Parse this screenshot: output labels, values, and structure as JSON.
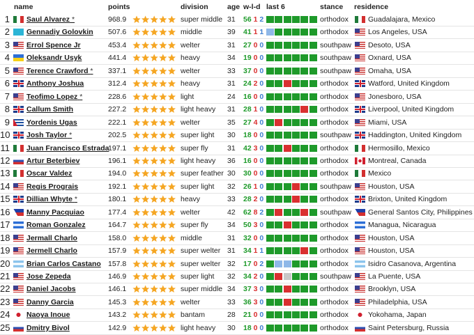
{
  "header": [
    "name",
    "points",
    "division",
    "age",
    "w-l-d",
    "last 6",
    "stance",
    "residence"
  ],
  "rows": [
    {
      "rank": 1,
      "name": "Saul Alvarez",
      "marker": "*",
      "points": "968.9",
      "division": "super middle",
      "age": 31,
      "w": 56,
      "l": 1,
      "d": 2,
      "stance": "orthodox",
      "residence": "Guadalajara, Mexico"
    },
    {
      "rank": 2,
      "name": "Gennadiy Golovkin",
      "points": "507.6",
      "division": "middle",
      "age": 39,
      "w": 41,
      "l": 1,
      "d": 1,
      "stance": "orthodox",
      "residence": "Los Angeles, USA"
    },
    {
      "rank": 3,
      "name": "Errol Spence Jr",
      "points": "453.4",
      "division": "welter",
      "age": 31,
      "w": 27,
      "l": 0,
      "d": 0,
      "stance": "southpaw",
      "residence": "Desoto, USA"
    },
    {
      "rank": 4,
      "name": "Oleksandr Usyk",
      "points": "441.4",
      "division": "heavy",
      "age": 34,
      "w": 19,
      "l": 0,
      "d": 0,
      "stance": "southpaw",
      "residence": "Oxnard, USA"
    },
    {
      "rank": 5,
      "name": "Terence Crawford",
      "marker": "*",
      "points": "337.1",
      "division": "welter",
      "age": 33,
      "w": 37,
      "l": 0,
      "d": 0,
      "stance": "southpaw",
      "residence": "Omaha, USA"
    },
    {
      "rank": 6,
      "name": "Anthony Joshua",
      "points": "312.4",
      "division": "heavy",
      "age": 31,
      "w": 24,
      "l": 2,
      "d": 0,
      "stance": "orthodox",
      "residence": "Watford, United Kingdom"
    },
    {
      "rank": 7,
      "name": "Teofimo Lopez",
      "marker": "*",
      "points": "228.6",
      "division": "light",
      "age": 24,
      "w": 16,
      "l": 0,
      "d": 0,
      "stance": "orthodox",
      "residence": "Jonesboro, USA"
    },
    {
      "rank": 8,
      "name": "Callum Smith",
      "points": "227.2",
      "division": "light heavy",
      "age": 31,
      "w": 28,
      "l": 1,
      "d": 0,
      "stance": "orthodox",
      "residence": "Liverpool, United Kingdom"
    },
    {
      "rank": 9,
      "name": "Yordenis Ugas",
      "points": "222.1",
      "division": "welter",
      "age": 35,
      "w": 27,
      "l": 4,
      "d": 0,
      "stance": "orthodox",
      "residence": "Miami, USA"
    },
    {
      "rank": 10,
      "name": "Josh Taylor",
      "marker": "*",
      "points": "202.5",
      "division": "super light",
      "age": 30,
      "w": 18,
      "l": 0,
      "d": 0,
      "stance": "southpaw",
      "residence": "Haddington, United Kingdom"
    },
    {
      "rank": 11,
      "name": "Juan Francisco Estrada",
      "points": "197.1",
      "division": "super fly",
      "age": 31,
      "w": 42,
      "l": 3,
      "d": 0,
      "stance": "orthodox",
      "residence": "Hermosillo, Mexico"
    },
    {
      "rank": 12,
      "name": "Artur Beterbiev",
      "points": "196.1",
      "division": "light heavy",
      "age": 36,
      "w": 16,
      "l": 0,
      "d": 0,
      "stance": "orthodox",
      "residence": "Montreal, Canada"
    },
    {
      "rank": 13,
      "name": "Oscar Valdez",
      "points": "194.0",
      "division": "super feather",
      "age": 30,
      "w": 30,
      "l": 0,
      "d": 0,
      "stance": "orthodox",
      "residence": "Mexico"
    },
    {
      "rank": 14,
      "name": "Regis Prograis",
      "points": "192.1",
      "division": "super light",
      "age": 32,
      "w": 26,
      "l": 1,
      "d": 0,
      "stance": "southpaw",
      "residence": "Houston, USA"
    },
    {
      "rank": 15,
      "name": "Dillian Whyte",
      "marker": "*",
      "points": "180.1",
      "division": "heavy",
      "age": 33,
      "w": 28,
      "l": 2,
      "d": 0,
      "stance": "orthodox",
      "residence": "Brixton, United Kingdom"
    },
    {
      "rank": 16,
      "name": "Manny Pacquiao",
      "points": "177.4",
      "division": "welter",
      "age": 42,
      "w": 62,
      "l": 8,
      "d": 2,
      "stance": "southpaw",
      "residence": "General Santos City, Philippines"
    },
    {
      "rank": 17,
      "name": "Roman Gonzalez",
      "points": "164.7",
      "division": "super fly",
      "age": 34,
      "w": 50,
      "l": 3,
      "d": 0,
      "stance": "orthodox",
      "residence": "Managua, Nicaragua"
    },
    {
      "rank": 18,
      "name": "Jermall Charlo",
      "points": "158.0",
      "division": "middle",
      "age": 31,
      "w": 32,
      "l": 0,
      "d": 0,
      "stance": "orthodox",
      "residence": "Houston, USA"
    },
    {
      "rank": 19,
      "name": "Jermell Charlo",
      "points": "157.9",
      "division": "super welter",
      "age": 31,
      "w": 34,
      "l": 1,
      "d": 1,
      "stance": "orthodox",
      "residence": "Houston, USA"
    },
    {
      "rank": 20,
      "name": "Brian Carlos Castano",
      "points": "157.8",
      "division": "super welter",
      "age": 32,
      "w": 17,
      "l": 0,
      "d": 2,
      "stance": "orthodox",
      "residence": "Isidro Casanova, Argentina"
    },
    {
      "rank": 21,
      "name": "Jose Zepeda",
      "points": "146.9",
      "division": "super light",
      "age": 32,
      "w": 34,
      "l": 2,
      "d": 0,
      "stance": "southpaw",
      "residence": "La Puente, USA"
    },
    {
      "rank": 22,
      "name": "Daniel Jacobs",
      "points": "146.1",
      "division": "super middle",
      "age": 34,
      "w": 37,
      "l": 3,
      "d": 0,
      "stance": "orthodox",
      "residence": "Brooklyn, USA"
    },
    {
      "rank": 23,
      "name": "Danny Garcia",
      "points": "145.3",
      "division": "welter",
      "age": 33,
      "w": 36,
      "l": 3,
      "d": 0,
      "stance": "orthodox",
      "residence": "Philadelphia, USA"
    },
    {
      "rank": 24,
      "name": "Naoya Inoue",
      "points": "143.2",
      "division": "bantam",
      "age": 28,
      "w": 21,
      "l": 0,
      "d": 0,
      "stance": "orthodox",
      "residence": "Yokohama, Japan"
    },
    {
      "rank": 25,
      "name": "Dmitry Bivol",
      "points": "142.9",
      "division": "light heavy",
      "age": 30,
      "w": 18,
      "l": 0,
      "d": 0,
      "stance": "orthodox",
      "residence": "Saint Petersburg, Russia"
    }
  ]
}
